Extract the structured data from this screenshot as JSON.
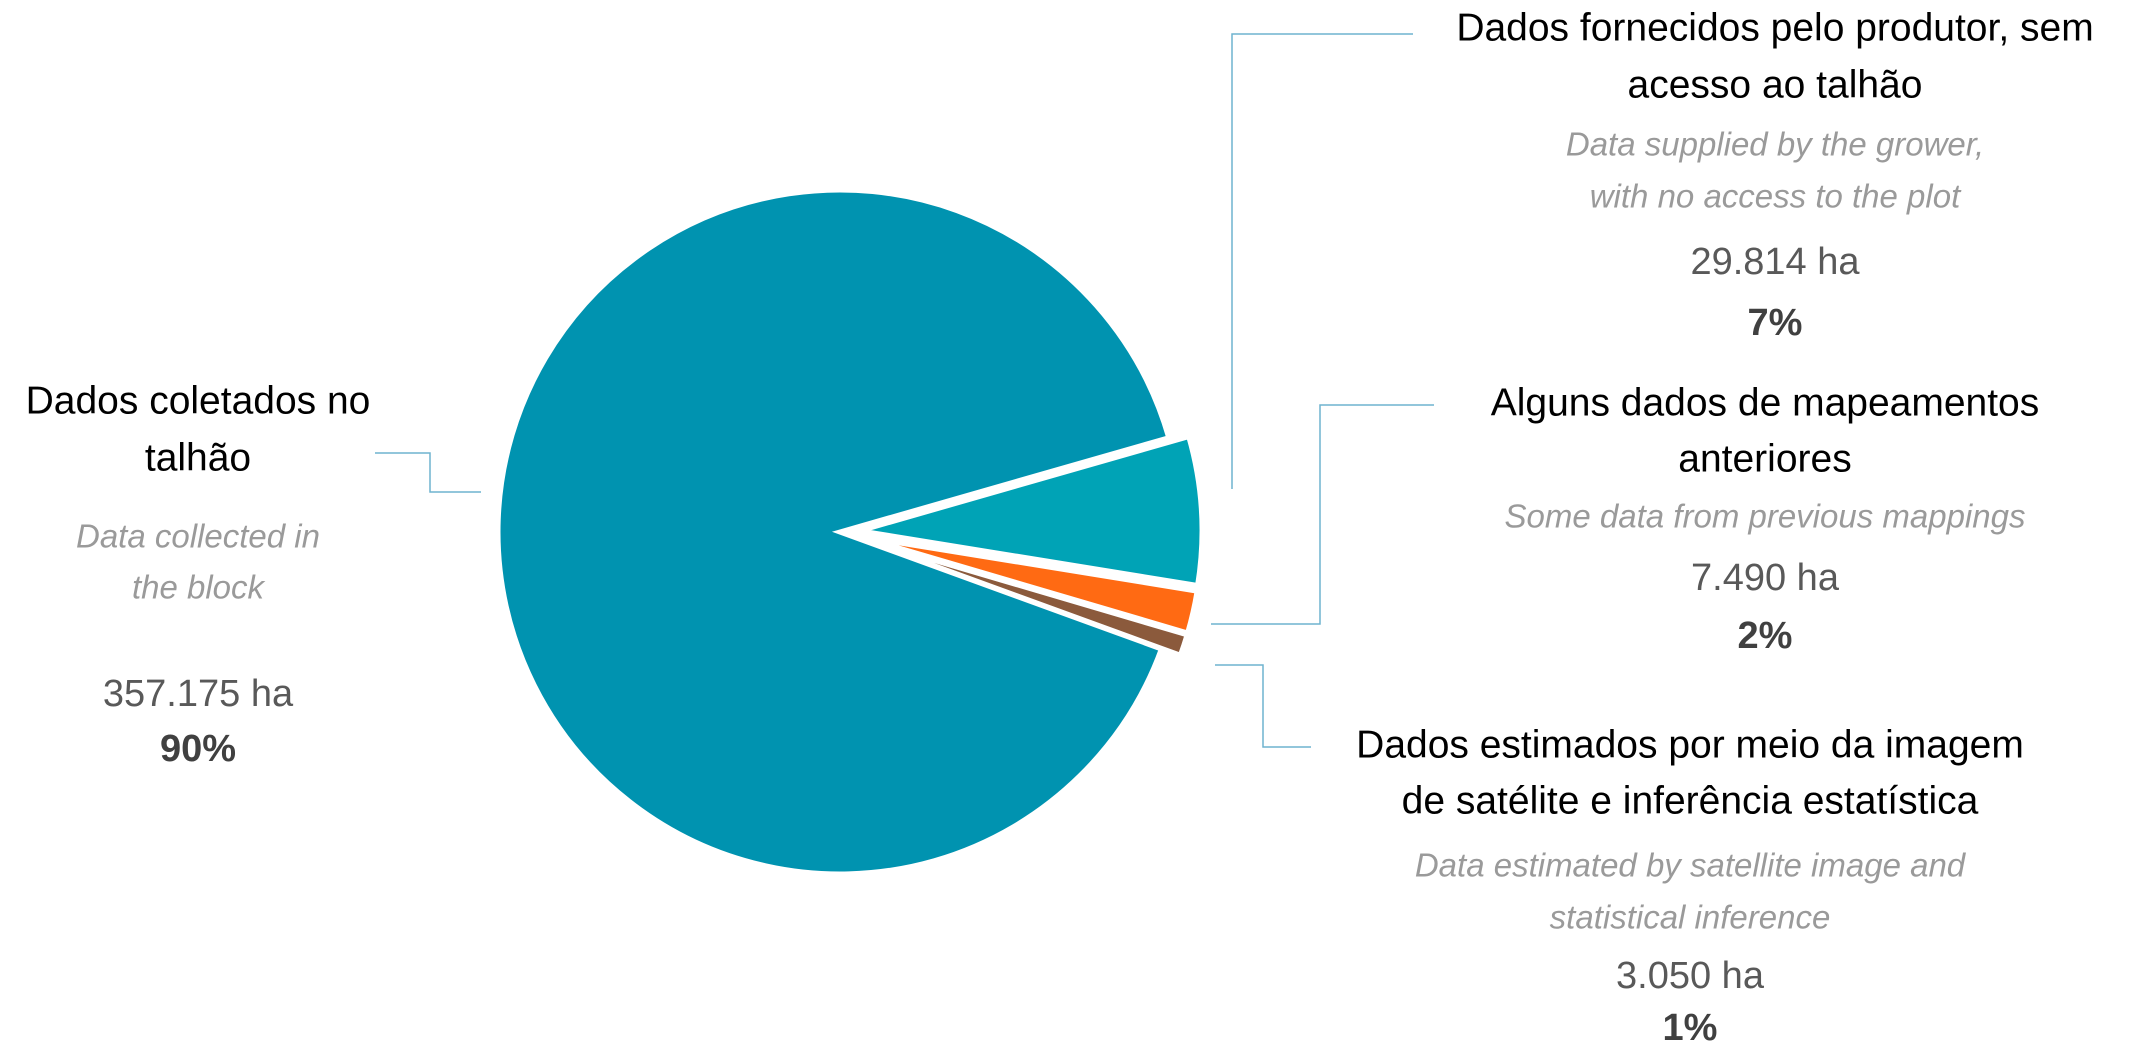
{
  "chart_data": {
    "type": "pie",
    "categories": [
      [
        "Dados coletados no",
        "talhão"
      ],
      [
        "Dados fornecidos pelo produtor, sem",
        "acesso ao talhão"
      ],
      [
        "Alguns dados de mapeamentos",
        "anteriores"
      ],
      [
        "Dados estimados por meio da imagem",
        "de satélite e inferência estatística"
      ]
    ],
    "subtitles": [
      [
        "Data collected in",
        "the block"
      ],
      [
        "Data supplied by the grower,",
        "with no access to the plot"
      ],
      [
        "Some data from previous mappings"
      ],
      [
        "Data estimated by satellite image and",
        "statistical inference"
      ]
    ],
    "areas": [
      "357.175 ha",
      "29.814 ha",
      "7.490 ha",
      "3.050 ha"
    ],
    "values": [
      90,
      7,
      2,
      1
    ],
    "value_labels": [
      "90%",
      "7%",
      "2%",
      "1%"
    ],
    "colors": [
      "#0093b0",
      "#00a3b6",
      "#ff6a13",
      "#8b5a3c"
    ]
  }
}
